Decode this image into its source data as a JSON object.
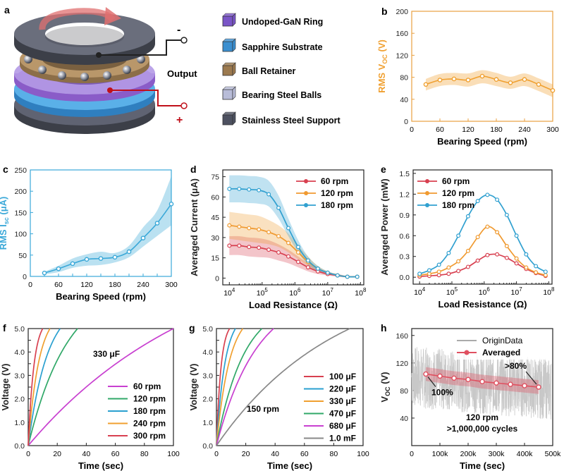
{
  "panel_labels": [
    "a",
    "b",
    "c",
    "d",
    "e",
    "f",
    "g",
    "h"
  ],
  "schematic": {
    "legend": [
      {
        "label": "Undoped-GaN Ring",
        "color": "#7a55c7"
      },
      {
        "label": "Sapphire Substrate",
        "color": "#3b8fd0"
      },
      {
        "label": "Ball Retainer",
        "color": "#9c7a4f"
      },
      {
        "label": "Bearing Steel Balls",
        "color": "#b8bcd8"
      },
      {
        "label": "Stainless Steel Support",
        "color": "#4d5160"
      }
    ],
    "output_label": "Output",
    "minus_sign": "-",
    "plus_sign": "+"
  },
  "chart_data": [
    {
      "id": "b",
      "type": "line",
      "xlabel": "Bearing Speed (rpm)",
      "ylabel": "RMS V",
      "ylabel_sub": "OC",
      "ylabel_unit": " (V)",
      "xlim": [
        0,
        300
      ],
      "ylim": [
        0,
        200
      ],
      "xticks": [
        0,
        60,
        120,
        180,
        240,
        300
      ],
      "yticks": [
        0,
        40,
        80,
        120,
        160,
        200
      ],
      "color": "#f0a030",
      "axis_color": "#e8a040",
      "x": [
        30,
        60,
        90,
        120,
        150,
        180,
        210,
        240,
        270,
        300
      ],
      "y": [
        67,
        75,
        77,
        75,
        82,
        76,
        70,
        76,
        67,
        56
      ],
      "band_lo": [
        56,
        64,
        66,
        63,
        69,
        64,
        59,
        64,
        55,
        44
      ],
      "band_hi": [
        77,
        86,
        88,
        87,
        93,
        88,
        81,
        87,
        78,
        67
      ]
    },
    {
      "id": "c",
      "type": "line",
      "xlabel": "Bearing Speed (rpm)",
      "ylabel": "RMS I",
      "ylabel_sub": "sc",
      "ylabel_unit": " (μA)",
      "xlim": [
        0,
        300
      ],
      "ylim": [
        0,
        250
      ],
      "xticks": [
        0,
        30,
        60,
        90,
        120,
        150,
        180,
        210,
        240,
        270,
        300
      ],
      "xtick_labels": [
        "0",
        "",
        "60",
        "",
        "120",
        "",
        "180",
        "",
        "240",
        "",
        "300"
      ],
      "yticks": [
        0,
        50,
        100,
        150,
        200,
        250
      ],
      "color": "#3aa8d8",
      "axis_color": "#3aa8d8",
      "x": [
        30,
        60,
        90,
        120,
        150,
        180,
        210,
        240,
        270,
        300
      ],
      "y": [
        8,
        18,
        30,
        40,
        42,
        45,
        58,
        90,
        125,
        170
      ],
      "band_lo": [
        5,
        10,
        20,
        25,
        27,
        33,
        45,
        70,
        95,
        120
      ],
      "band_hi": [
        11,
        25,
        42,
        52,
        58,
        55,
        72,
        115,
        155,
        235
      ]
    },
    {
      "id": "d",
      "type": "line",
      "xscale": "log",
      "xlabel": "Load Resistance (Ω)",
      "ylabel": "Averaged Current (μA)",
      "xlim_exp": [
        3.8,
        8.1
      ],
      "ylim": [
        -5,
        80
      ],
      "xtick_exps": [
        4,
        5,
        6,
        7,
        8
      ],
      "yticks": [
        0,
        15,
        30,
        45,
        60,
        75
      ],
      "legend": [
        "60 rpm",
        "120 rpm",
        "180 rpm"
      ],
      "series": [
        {
          "name": "60 rpm",
          "color": "#d84050",
          "x_exp": [
            4,
            4.3,
            4.6,
            4.9,
            5.2,
            5.5,
            5.8,
            6.1,
            6.4,
            6.7,
            7,
            7.3,
            7.6,
            7.9
          ],
          "y": [
            24,
            24,
            23,
            22.5,
            21,
            19,
            16,
            12,
            8,
            5,
            3,
            2,
            1,
            1
          ],
          "band_lo": [
            17,
            17,
            16,
            15.5,
            15,
            13,
            11,
            8,
            5,
            3,
            2,
            1,
            0.5,
            0.5
          ],
          "band_hi": [
            31,
            31,
            30,
            29.5,
            28,
            25,
            21,
            16,
            11,
            7,
            4,
            3,
            1.5,
            1.5
          ]
        },
        {
          "name": "120 rpm",
          "color": "#f09a30",
          "x_exp": [
            4,
            4.3,
            4.6,
            4.9,
            5.2,
            5.5,
            5.8,
            6.1,
            6.4,
            6.7,
            7,
            7.3,
            7.6,
            7.9
          ],
          "y": [
            39,
            38,
            37,
            36,
            34,
            31,
            26,
            19,
            12,
            7,
            4,
            2,
            1,
            1
          ],
          "band_lo": [
            29,
            28,
            27,
            26,
            25,
            23,
            19,
            14,
            9,
            5,
            3,
            1.5,
            0.5,
            0.5
          ],
          "band_hi": [
            49,
            48,
            47,
            46,
            43,
            39,
            33,
            24,
            16,
            9,
            5,
            3,
            1.5,
            1.5
          ]
        },
        {
          "name": "180 rpm",
          "color": "#30a0d0",
          "x_exp": [
            4,
            4.3,
            4.6,
            4.9,
            5.2,
            5.5,
            5.8,
            6.1,
            6.4,
            6.7,
            7,
            7.3,
            7.6,
            7.9
          ],
          "y": [
            66,
            66,
            65.5,
            65,
            62,
            52,
            37,
            23,
            13,
            7,
            4,
            2,
            1,
            1
          ],
          "band_lo": [
            56,
            56,
            55.5,
            55,
            53,
            44,
            31,
            19,
            10,
            5,
            3,
            1.5,
            0.5,
            0.5
          ],
          "band_hi": [
            76,
            76,
            75.5,
            75,
            72,
            61,
            44,
            28,
            16,
            9,
            5,
            3,
            1.5,
            1.5
          ]
        }
      ]
    },
    {
      "id": "e",
      "type": "line",
      "xscale": "log",
      "xlabel": "Load Resistance (Ω)",
      "ylabel": "Averaged Power (mW)",
      "xlim_exp": [
        3.8,
        8.1
      ],
      "ylim": [
        -0.1,
        1.55
      ],
      "xtick_exps": [
        4,
        5,
        6,
        7,
        8
      ],
      "yticks": [
        0.0,
        0.3,
        0.6,
        0.9,
        1.2,
        1.5
      ],
      "ytick_labels": [
        "0.0",
        "0.3",
        "0.6",
        "0.9",
        "1.2",
        "1.5"
      ],
      "legend": [
        "60 rpm",
        "120 rpm",
        "180 rpm"
      ],
      "series": [
        {
          "name": "60 rpm",
          "color": "#d84050",
          "x_exp": [
            4,
            4.3,
            4.6,
            4.9,
            5.2,
            5.5,
            5.8,
            6.1,
            6.4,
            6.7,
            7,
            7.3,
            7.6,
            7.9
          ],
          "y": [
            0.01,
            0.02,
            0.03,
            0.05,
            0.09,
            0.15,
            0.24,
            0.32,
            0.33,
            0.28,
            0.2,
            0.12,
            0.06,
            0.02
          ]
        },
        {
          "name": "120 rpm",
          "color": "#f09a30",
          "x_exp": [
            4,
            4.3,
            4.6,
            4.9,
            5.2,
            5.5,
            5.8,
            6.1,
            6.4,
            6.7,
            7,
            7.3,
            7.6,
            7.9
          ],
          "y": [
            0.03,
            0.05,
            0.08,
            0.14,
            0.23,
            0.38,
            0.58,
            0.73,
            0.65,
            0.45,
            0.27,
            0.14,
            0.07,
            0.03
          ]
        },
        {
          "name": "180 rpm",
          "color": "#30a0d0",
          "x_exp": [
            4,
            4.3,
            4.6,
            4.9,
            5.2,
            5.5,
            5.8,
            6.1,
            6.4,
            6.7,
            7,
            7.3,
            7.6,
            7.9
          ],
          "y": [
            0.05,
            0.1,
            0.18,
            0.35,
            0.6,
            0.88,
            1.1,
            1.19,
            1.12,
            0.9,
            0.6,
            0.33,
            0.16,
            0.08
          ]
        }
      ]
    },
    {
      "id": "f",
      "type": "line",
      "xlabel": "Time (sec)",
      "ylabel": "Voltage (V)",
      "xlim": [
        0,
        100
      ],
      "ylim": [
        0,
        5
      ],
      "xticks": [
        0,
        20,
        40,
        60,
        80,
        100
      ],
      "yticks": [
        0.0,
        0.5,
        1.0,
        1.5,
        2.0,
        2.5,
        3.0,
        3.5,
        4.0,
        4.5,
        5.0
      ],
      "ytick_labels": [
        "0.0",
        "",
        "1.0",
        "",
        "2.0",
        "",
        "3.0",
        "",
        "4.0",
        "",
        "5.0"
      ],
      "annotation": "330 μF",
      "legend": [
        "60 rpm",
        "120 rpm",
        "180 rpm",
        "240 rpm",
        "300 rpm"
      ],
      "series": [
        {
          "name": "60 rpm",
          "color": "#c840d0",
          "t_full": 100,
          "k": 1.2
        },
        {
          "name": "120 rpm",
          "color": "#30a868",
          "t_full": 34,
          "k": 0.8
        },
        {
          "name": "180 rpm",
          "color": "#2aa0d0",
          "t_full": 22,
          "k": 0.6
        },
        {
          "name": "240 rpm",
          "color": "#f0a030",
          "t_full": 15,
          "k": 0.5
        },
        {
          "name": "300 rpm",
          "color": "#d84050",
          "t_full": 10,
          "k": 0.4
        }
      ]
    },
    {
      "id": "g",
      "type": "line",
      "xlabel": "Time (sec)",
      "ylabel": "Voltage (V)",
      "xlim": [
        0,
        100
      ],
      "ylim": [
        0,
        5
      ],
      "xticks": [
        0,
        20,
        40,
        60,
        80,
        100
      ],
      "yticks": [
        0.0,
        0.5,
        1.0,
        1.5,
        2.0,
        2.5,
        3.0,
        3.5,
        4.0,
        4.5,
        5.0
      ],
      "ytick_labels": [
        "0.0",
        "",
        "1.0",
        "",
        "2.0",
        "",
        "3.0",
        "",
        "4.0",
        "",
        "5.0"
      ],
      "annotation": "150 rpm",
      "legend": [
        "100 μF",
        "220 μF",
        "330 μF",
        "470 μF",
        "680 μF",
        "1.0 mF"
      ],
      "series": [
        {
          "name": "100 μF",
          "color": "#d84050",
          "t_full": 9,
          "k": 0.35
        },
        {
          "name": "220 μF",
          "color": "#2aa0d0",
          "t_full": 13,
          "k": 0.45
        },
        {
          "name": "330 μF",
          "color": "#f0a030",
          "t_full": 18,
          "k": 0.5
        },
        {
          "name": "470 μF",
          "color": "#30a868",
          "t_full": 31,
          "k": 0.6
        },
        {
          "name": "680 μF",
          "color": "#c840d0",
          "t_full": 39,
          "k": 0.7
        },
        {
          "name": "1.0 mF",
          "color": "#888888",
          "t_full": 91,
          "k": 0.9
        }
      ]
    },
    {
      "id": "h",
      "type": "line",
      "xlabel": "Time (sec)",
      "ylabel": "V",
      "ylabel_sub": "OC",
      "ylabel_unit": " (V)",
      "xlim": [
        0,
        500000
      ],
      "ylim": [
        0,
        170
      ],
      "xticks": [
        0,
        100000,
        200000,
        300000,
        400000,
        500000
      ],
      "xtick_labels": [
        "0",
        "100k",
        "200k",
        "300k",
        "400k",
        "500k"
      ],
      "yticks": [
        40,
        80,
        120,
        160
      ],
      "legend": [
        "OriginData",
        "Averaged"
      ],
      "annotations": [
        "100%",
        ">80%",
        "120 rpm",
        ">1,000,000 cycles"
      ],
      "origin_color": "#c8c8c8",
      "avg_color": "#e05060",
      "noise_center_start": 100,
      "noise_center_end": 82,
      "noise_amp": 45,
      "avg_x": [
        50000,
        100000,
        150000,
        200000,
        250000,
        300000,
        350000,
        400000,
        450000
      ],
      "avg_y": [
        104,
        101,
        98,
        96,
        93,
        91,
        89,
        87,
        85
      ],
      "band_lo": [
        94,
        91,
        88,
        86,
        83,
        81,
        79,
        77,
        75
      ],
      "band_hi": [
        114,
        111,
        108,
        106,
        103,
        101,
        99,
        97,
        95
      ]
    }
  ]
}
